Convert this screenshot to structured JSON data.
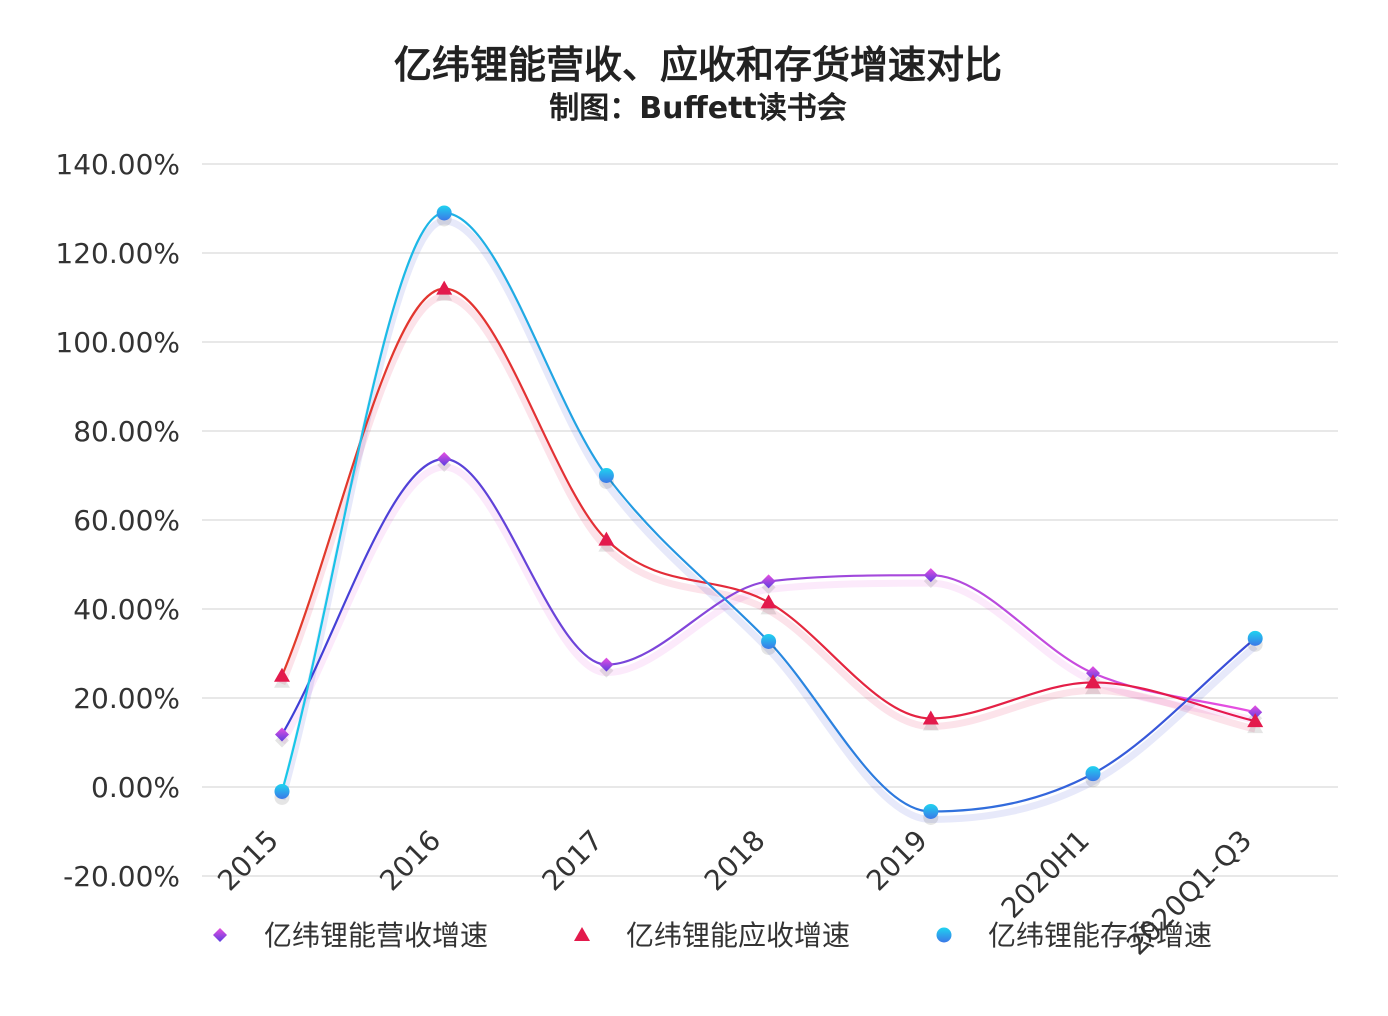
{
  "chart_data": {
    "type": "line",
    "title": "亿纬锂能营收、应收和存货增速对比",
    "subtitle": "制图：Buffett读书会",
    "categories": [
      "2015",
      "2016",
      "2017",
      "2018",
      "2019",
      "2020H1",
      "2020Q1-Q3"
    ],
    "ylim": [
      -0.2,
      1.4
    ],
    "yticks": [
      "-20.00%",
      "0.00%",
      "20.00%",
      "40.00%",
      "60.00%",
      "80.00%",
      "100.00%",
      "120.00%",
      "140.00%"
    ],
    "ytick_values": [
      -0.2,
      0,
      0.2,
      0.4,
      0.6,
      0.8,
      1.0,
      1.2,
      1.4
    ],
    "grid": true,
    "smooth": true,
    "legend_position": "bottom",
    "series": [
      {
        "name": "亿纬锂能营收增速",
        "marker": "diamond",
        "colors": [
          "#3b3fd6",
          "#e84fe0"
        ],
        "marker_color": "#8a3ee6",
        "values": [
          0.118,
          0.737,
          0.275,
          0.462,
          0.476,
          0.256,
          0.168
        ]
      },
      {
        "name": "亿纬锂能应收增速",
        "marker": "triangle",
        "colors": [
          "#e23b2a",
          "#e5174f"
        ],
        "marker_color": "#e31a4c",
        "values": [
          0.25,
          1.12,
          0.556,
          0.415,
          0.154,
          0.235,
          0.148
        ]
      },
      {
        "name": "亿纬锂能存货增速",
        "marker": "circle",
        "colors": [
          "#18c9e8",
          "#3b4ad8"
        ],
        "marker_color": "#2fb0f0",
        "values": [
          -0.01,
          1.29,
          0.7,
          0.327,
          -0.055,
          0.03,
          0.334
        ]
      }
    ]
  }
}
